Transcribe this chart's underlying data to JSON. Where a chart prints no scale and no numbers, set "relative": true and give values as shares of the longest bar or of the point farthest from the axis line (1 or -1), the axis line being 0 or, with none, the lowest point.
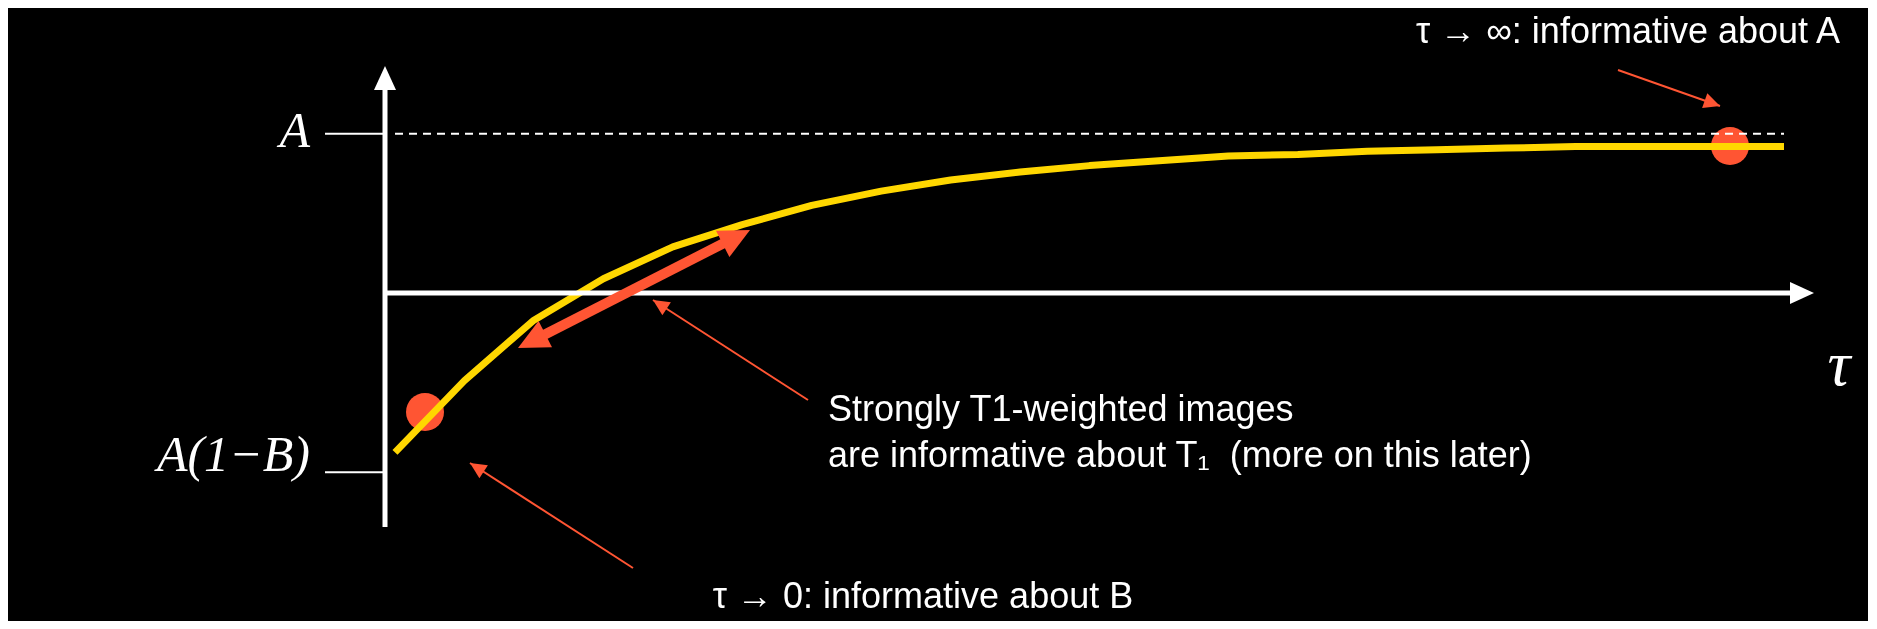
{
  "chart_data": {
    "type": "line",
    "xlabel": "τ",
    "relative": true,
    "categories": [
      null,
      null,
      null,
      null,
      null,
      null,
      null,
      null,
      null,
      null,
      null,
      null,
      null,
      null,
      null,
      null,
      null,
      null,
      null,
      null,
      null
    ],
    "series": [
      {
        "color": "#ffd700",
        "values": [
          -1,
          -0.55,
          -0.17,
          0.09,
          0.29,
          0.43,
          0.55,
          0.64,
          0.71,
          0.76,
          0.8,
          0.83,
          0.86,
          0.87,
          0.89,
          0.9,
          0.91,
          0.92,
          0.92,
          0.92,
          0.92
        ]
      },
      {
        "color": "#ffffff",
        "line_style": "dashed",
        "values": [
          1,
          1,
          1,
          1,
          1,
          1,
          1,
          1,
          1,
          1,
          1,
          1,
          1,
          1,
          1,
          1,
          1,
          1,
          1,
          1,
          1
        ]
      }
    ],
    "annotations": [
      "A(1−B)",
      "A",
      "τ → ∞: informative about A",
      "Strongly T1-weighted images\nare informative about T₁  (more on this later)",
      "τ → 0: informative about B"
    ]
  }
}
